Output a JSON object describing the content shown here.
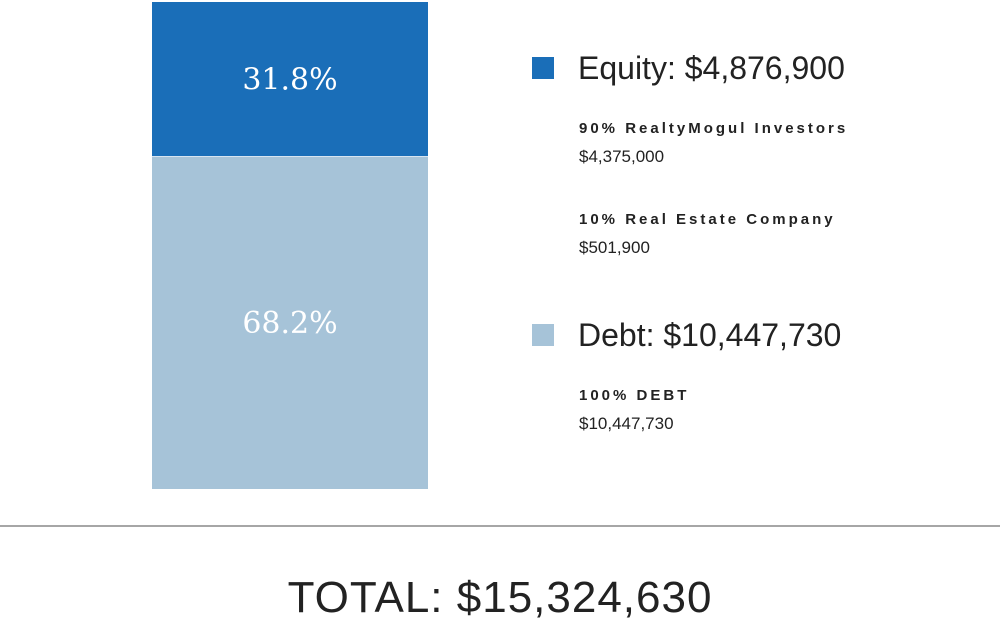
{
  "chart_data": {
    "type": "bar",
    "stacked": true,
    "categories": [
      ""
    ],
    "series": [
      {
        "name": "Equity",
        "percent": 31.8,
        "percent_label": "31.8%",
        "legend_label": "Equity: $4,876,900",
        "color": "#1a6eb8",
        "sub_items": [
          {
            "label": "90% RealtyMogul Investors",
            "value": "$4,375,000"
          },
          {
            "label": "10% Real Estate Company",
            "value": "$501,900"
          }
        ]
      },
      {
        "name": "Debt",
        "percent": 68.2,
        "percent_label": "68.2%",
        "legend_label": "Debt: $10,447,730",
        "color": "#a6c3d8",
        "sub_items": [
          {
            "label": "100% DEBT",
            "value": "$10,447,730"
          }
        ]
      }
    ],
    "total_label": "TOTAL: $15,324,630",
    "divider_color": "#888888"
  }
}
